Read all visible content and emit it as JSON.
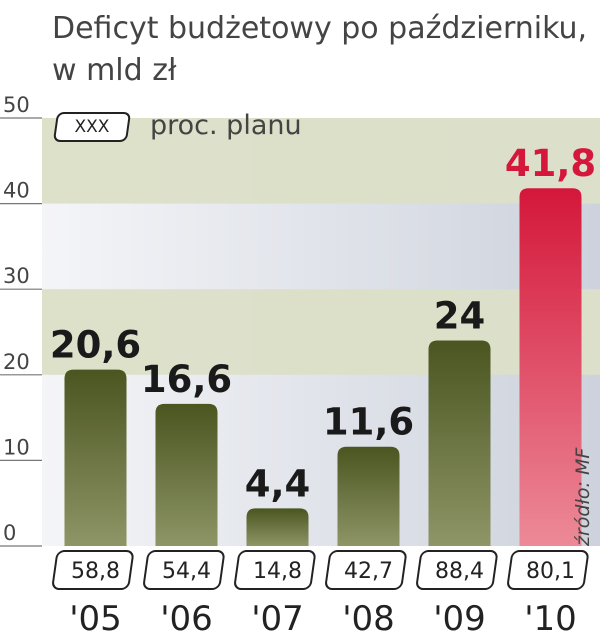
{
  "title_line1": "Deficyt budżetowy po październiku,",
  "title_line2": "w mld zł",
  "legend": {
    "box_text": "XXX",
    "label": "proc. planu"
  },
  "source": "źródło: MF",
  "colors": {
    "bar_dark": "#4a5520",
    "bar_light": "#8e9566",
    "bar_highlight_top": "#d4173a",
    "bar_highlight_bottom": "#ec8a98",
    "highlight_label": "#d4173a",
    "band": "#dcdfc7",
    "plot_bg": "#e3e6ed"
  },
  "chart_data": {
    "type": "bar",
    "title": "Deficyt budżetowy po październiku, w mld zł",
    "categories": [
      "'05",
      "'06",
      "'07",
      "'08",
      "'09",
      "'10"
    ],
    "values": [
      20.6,
      16.6,
      4.4,
      11.6,
      24,
      41.8
    ],
    "value_labels": [
      "20,6",
      "16,6",
      "4,4",
      "11,6",
      "24",
      "41,8"
    ],
    "plan_percent_labels": [
      "58,8",
      "54,4",
      "14,8",
      "42,7",
      "88,4",
      "80,1"
    ],
    "y_ticks": [
      "0",
      "10",
      "20",
      "30",
      "40",
      "50"
    ],
    "ylim": [
      0,
      50
    ],
    "highlight_index": 5,
    "grid": false
  }
}
